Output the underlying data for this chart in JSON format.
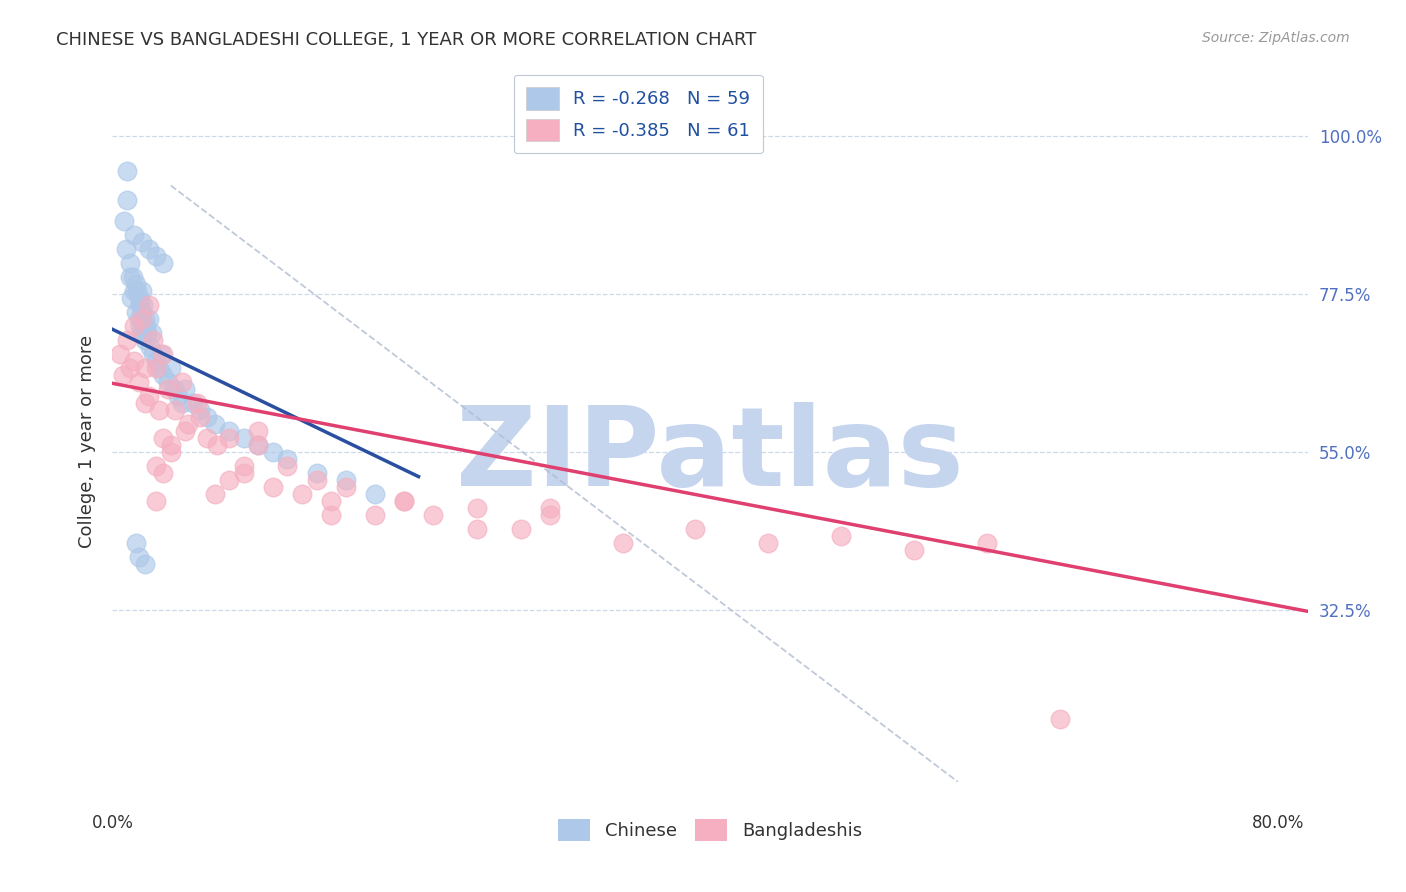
{
  "title": "CHINESE VS BANGLADESHI COLLEGE, 1 YEAR OR MORE CORRELATION CHART",
  "source": "Source: ZipAtlas.com",
  "ylabel": "College, 1 year or more",
  "xlim": [
    0.0,
    0.82
  ],
  "ylim": [
    0.05,
    1.08
  ],
  "y_ticks_right": [
    0.325,
    0.55,
    0.775,
    1.0
  ],
  "y_tick_labels_right": [
    "32.5%",
    "55.0%",
    "77.5%",
    "100.0%"
  ],
  "x_ticks": [
    0.0,
    0.8
  ],
  "x_tick_labels": [
    "0.0%",
    "80.0%"
  ],
  "legend_r1": "R = -0.268   N = 59",
  "legend_r2": "R = -0.385   N = 61",
  "chinese_fill": "#adc8e8",
  "bangladeshi_fill": "#f5afc0",
  "trend_chinese_color": "#2b4fa0",
  "trend_bangladeshi_color": "#e04070",
  "ref_line_color": "#b0bcd0",
  "watermark": "ZIPatlas",
  "watermark_color": "#c5d5ee",
  "grid_color": "#c8d4e8",
  "bg_color": "#ffffff",
  "title_color": "#333333",
  "source_color": "#999999",
  "right_tick_color": "#5070c0",
  "left_tick_color": "#333333",
  "legend_label_color": "#2050a0",
  "bottom_legend_color": "#333333",
  "scatter_alpha": 0.65,
  "scatter_size": 180,
  "chinese_x": [
    0.008,
    0.009,
    0.012,
    0.012,
    0.013,
    0.014,
    0.015,
    0.016,
    0.016,
    0.017,
    0.018,
    0.018,
    0.019,
    0.019,
    0.02,
    0.02,
    0.02,
    0.021,
    0.021,
    0.022,
    0.022,
    0.023,
    0.024,
    0.025,
    0.026,
    0.027,
    0.028,
    0.03,
    0.032,
    0.033,
    0.035,
    0.038,
    0.04,
    0.042,
    0.045,
    0.048,
    0.05,
    0.055,
    0.06,
    0.065,
    0.07,
    0.08,
    0.09,
    0.1,
    0.11,
    0.12,
    0.14,
    0.16,
    0.18,
    0.01,
    0.01,
    0.015,
    0.02,
    0.025,
    0.03,
    0.035,
    0.016,
    0.018,
    0.022
  ],
  "chinese_y": [
    0.88,
    0.84,
    0.82,
    0.8,
    0.77,
    0.8,
    0.78,
    0.79,
    0.75,
    0.78,
    0.77,
    0.74,
    0.76,
    0.73,
    0.78,
    0.75,
    0.72,
    0.76,
    0.73,
    0.74,
    0.71,
    0.73,
    0.72,
    0.74,
    0.7,
    0.72,
    0.69,
    0.68,
    0.67,
    0.69,
    0.66,
    0.65,
    0.67,
    0.64,
    0.63,
    0.62,
    0.64,
    0.62,
    0.61,
    0.6,
    0.59,
    0.58,
    0.57,
    0.56,
    0.55,
    0.54,
    0.52,
    0.51,
    0.49,
    0.95,
    0.91,
    0.86,
    0.85,
    0.84,
    0.83,
    0.82,
    0.42,
    0.4,
    0.39
  ],
  "bangladeshi_x": [
    0.005,
    0.007,
    0.01,
    0.012,
    0.015,
    0.015,
    0.018,
    0.02,
    0.022,
    0.022,
    0.025,
    0.025,
    0.028,
    0.03,
    0.032,
    0.035,
    0.035,
    0.038,
    0.04,
    0.043,
    0.048,
    0.052,
    0.058,
    0.065,
    0.072,
    0.08,
    0.09,
    0.1,
    0.11,
    0.12,
    0.13,
    0.14,
    0.15,
    0.16,
    0.18,
    0.2,
    0.22,
    0.25,
    0.28,
    0.3,
    0.35,
    0.4,
    0.45,
    0.5,
    0.55,
    0.6,
    0.03,
    0.04,
    0.05,
    0.06,
    0.07,
    0.08,
    0.09,
    0.1,
    0.15,
    0.2,
    0.25,
    0.3,
    0.03,
    0.035,
    0.65
  ],
  "bangladeshi_y": [
    0.69,
    0.66,
    0.71,
    0.67,
    0.73,
    0.68,
    0.65,
    0.74,
    0.62,
    0.67,
    0.76,
    0.63,
    0.71,
    0.67,
    0.61,
    0.69,
    0.57,
    0.64,
    0.55,
    0.61,
    0.65,
    0.59,
    0.62,
    0.57,
    0.56,
    0.57,
    0.52,
    0.56,
    0.5,
    0.53,
    0.49,
    0.51,
    0.48,
    0.5,
    0.46,
    0.48,
    0.46,
    0.47,
    0.44,
    0.46,
    0.42,
    0.44,
    0.42,
    0.43,
    0.41,
    0.42,
    0.53,
    0.56,
    0.58,
    0.6,
    0.49,
    0.51,
    0.53,
    0.58,
    0.46,
    0.48,
    0.44,
    0.47,
    0.48,
    0.52,
    0.17
  ],
  "chinese_trend_x": [
    0.0,
    0.21
  ],
  "chinese_trend_y": [
    0.725,
    0.515
  ],
  "bangladeshi_trend_x": [
    0.0,
    0.82
  ],
  "bangladeshi_trend_y": [
    0.648,
    0.323
  ],
  "ref_line_x": [
    0.04,
    0.58
  ],
  "ref_line_y": [
    0.93,
    0.08
  ]
}
